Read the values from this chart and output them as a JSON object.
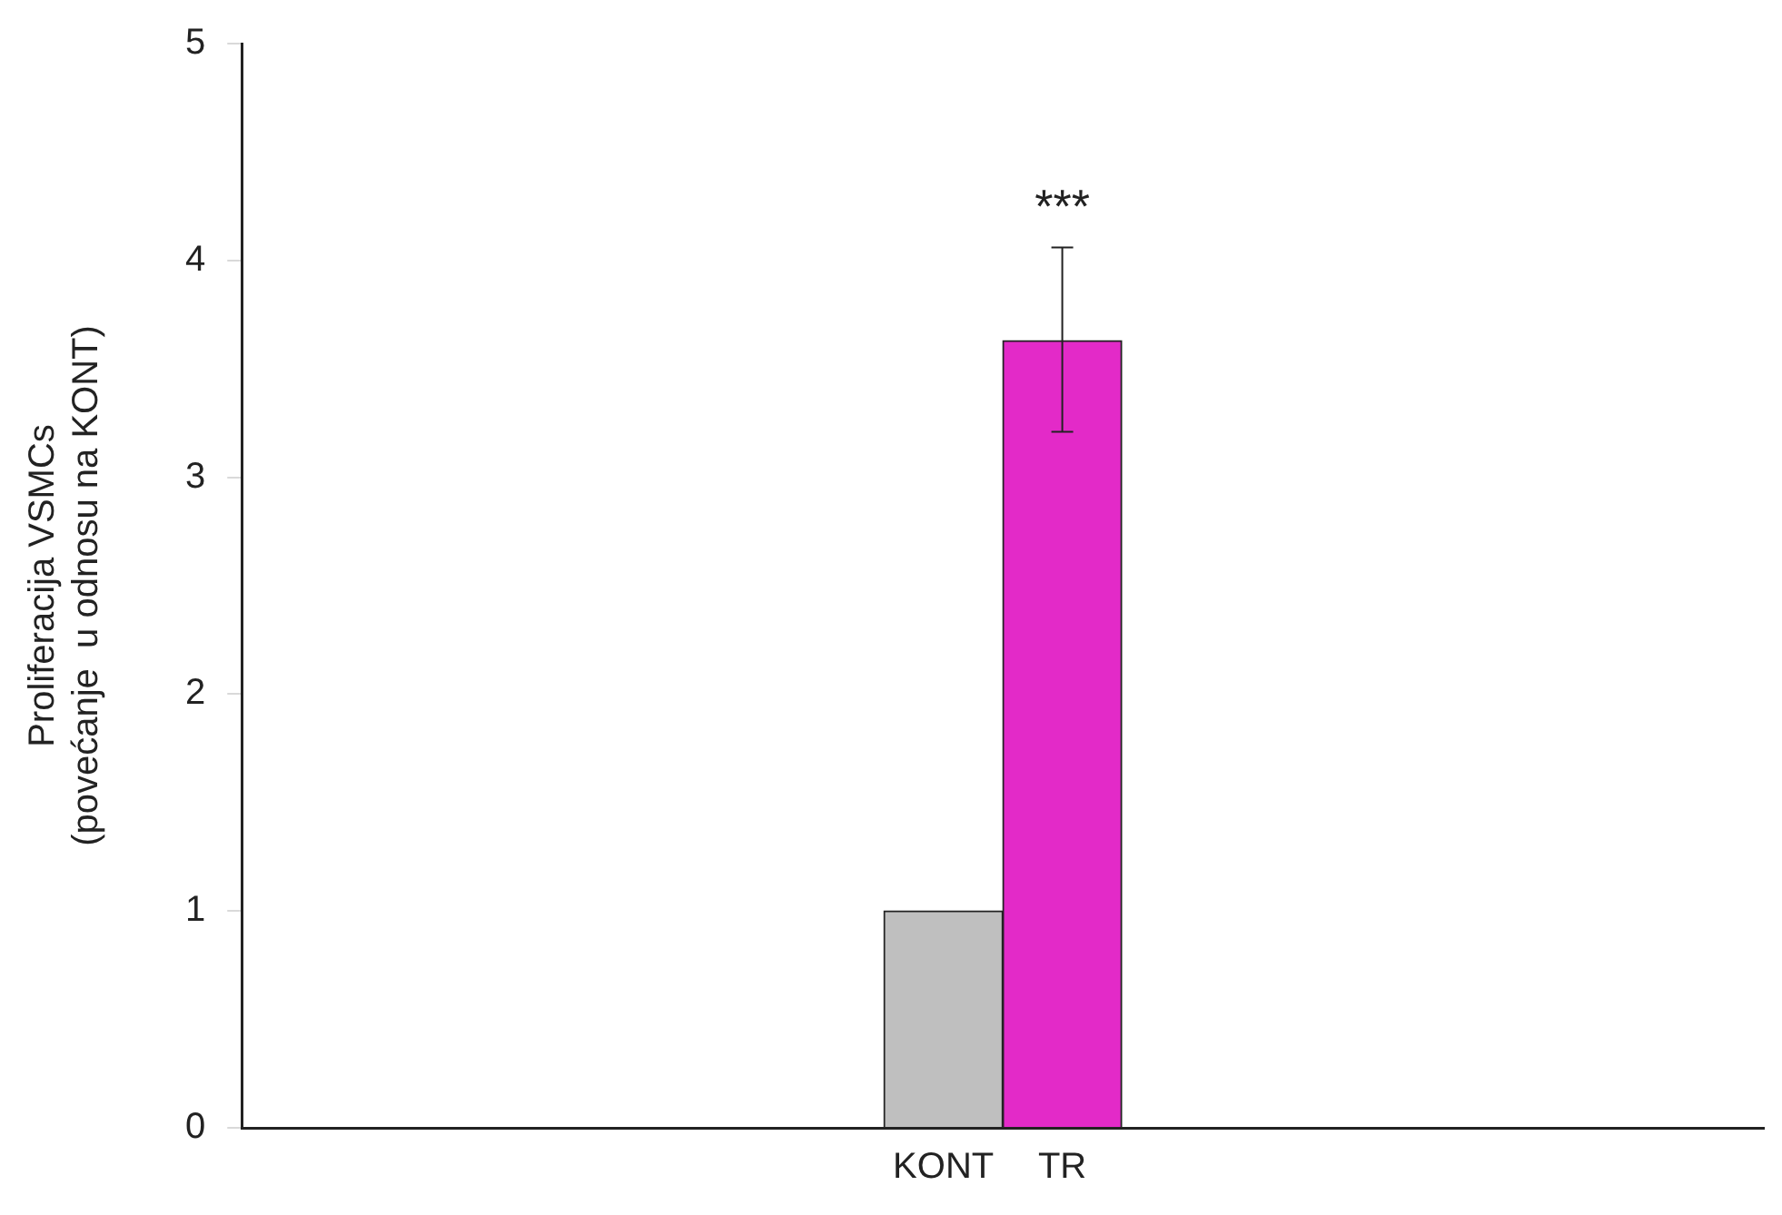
{
  "chart_data": {
    "type": "bar",
    "categories": [
      "KONT",
      "TR"
    ],
    "values": [
      1,
      3.63
    ],
    "colors": [
      "#bfbfbf",
      "#e32ac8"
    ],
    "errors": [
      null,
      [
        3.21,
        4.06
      ]
    ],
    "ylabel": "Proliferacija VSMCs\n(povećanje  u odnosu na KONT)",
    "ylim": [
      0,
      5
    ],
    "yticks": [
      0,
      1,
      2,
      3,
      4,
      5
    ],
    "grid": false,
    "legend": false,
    "annotations": [
      "***"
    ]
  }
}
